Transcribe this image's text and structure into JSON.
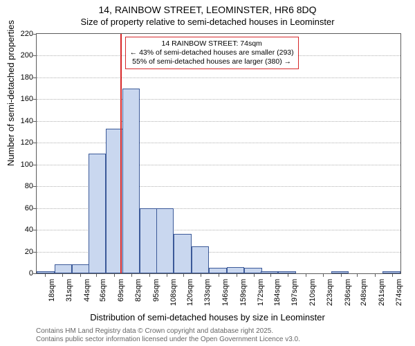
{
  "title_main": "14, RAINBOW STREET, LEOMINSTER, HR6 8DQ",
  "title_sub": "Size of property relative to semi-detached houses in Leominster",
  "y_label": "Number of semi-detached properties",
  "x_label": "Distribution of semi-detached houses by size in Leominster",
  "footer_line1": "Contains HM Land Registry data © Crown copyright and database right 2025.",
  "footer_line2": "Contains public sector information licensed under the Open Government Licence v3.0.",
  "info_box": {
    "line1": "14 RAINBOW STREET: 74sqm",
    "line2": "← 43% of semi-detached houses are smaller (293)",
    "line3": "55% of semi-detached houses are larger (380) →"
  },
  "chart": {
    "type": "histogram",
    "background_color": "#ffffff",
    "bar_fill": "#c9d7ef",
    "bar_border": "#3b5998",
    "grid_color": "#b0b0b0",
    "axis_color": "#5b5b5b",
    "ref_line_color": "#d62728",
    "ref_line_x": 74,
    "title_fontsize": 14,
    "label_fontsize": 13,
    "tick_fontsize": 11,
    "footer_fontsize": 10,
    "footer_color": "#666666",
    "info_box_fontsize": 10.5,
    "x_min": 12,
    "x_max": 280,
    "x_ticks": [
      18,
      31,
      44,
      56,
      69,
      82,
      95,
      108,
      120,
      133,
      146,
      159,
      172,
      184,
      197,
      210,
      223,
      236,
      248,
      261,
      274
    ],
    "x_tick_suffix": "sqm",
    "y_min": 0,
    "y_max": 220,
    "y_ticks": [
      0,
      20,
      40,
      60,
      80,
      100,
      120,
      140,
      160,
      180,
      200,
      220
    ],
    "bin_width": 13,
    "bins": [
      {
        "start": 12,
        "value": 2
      },
      {
        "start": 25,
        "value": 8
      },
      {
        "start": 38,
        "value": 8
      },
      {
        "start": 50,
        "value": 110
      },
      {
        "start": 63,
        "value": 133
      },
      {
        "start": 75,
        "value": 170
      },
      {
        "start": 88,
        "value": 60
      },
      {
        "start": 100,
        "value": 60
      },
      {
        "start": 113,
        "value": 36
      },
      {
        "start": 126,
        "value": 25
      },
      {
        "start": 139,
        "value": 5
      },
      {
        "start": 152,
        "value": 6
      },
      {
        "start": 165,
        "value": 5
      },
      {
        "start": 177,
        "value": 2
      },
      {
        "start": 190,
        "value": 2
      },
      {
        "start": 203,
        "value": 0
      },
      {
        "start": 216,
        "value": 0
      },
      {
        "start": 229,
        "value": 2
      },
      {
        "start": 241,
        "value": 0
      },
      {
        "start": 254,
        "value": 0
      },
      {
        "start": 267,
        "value": 2
      }
    ]
  }
}
